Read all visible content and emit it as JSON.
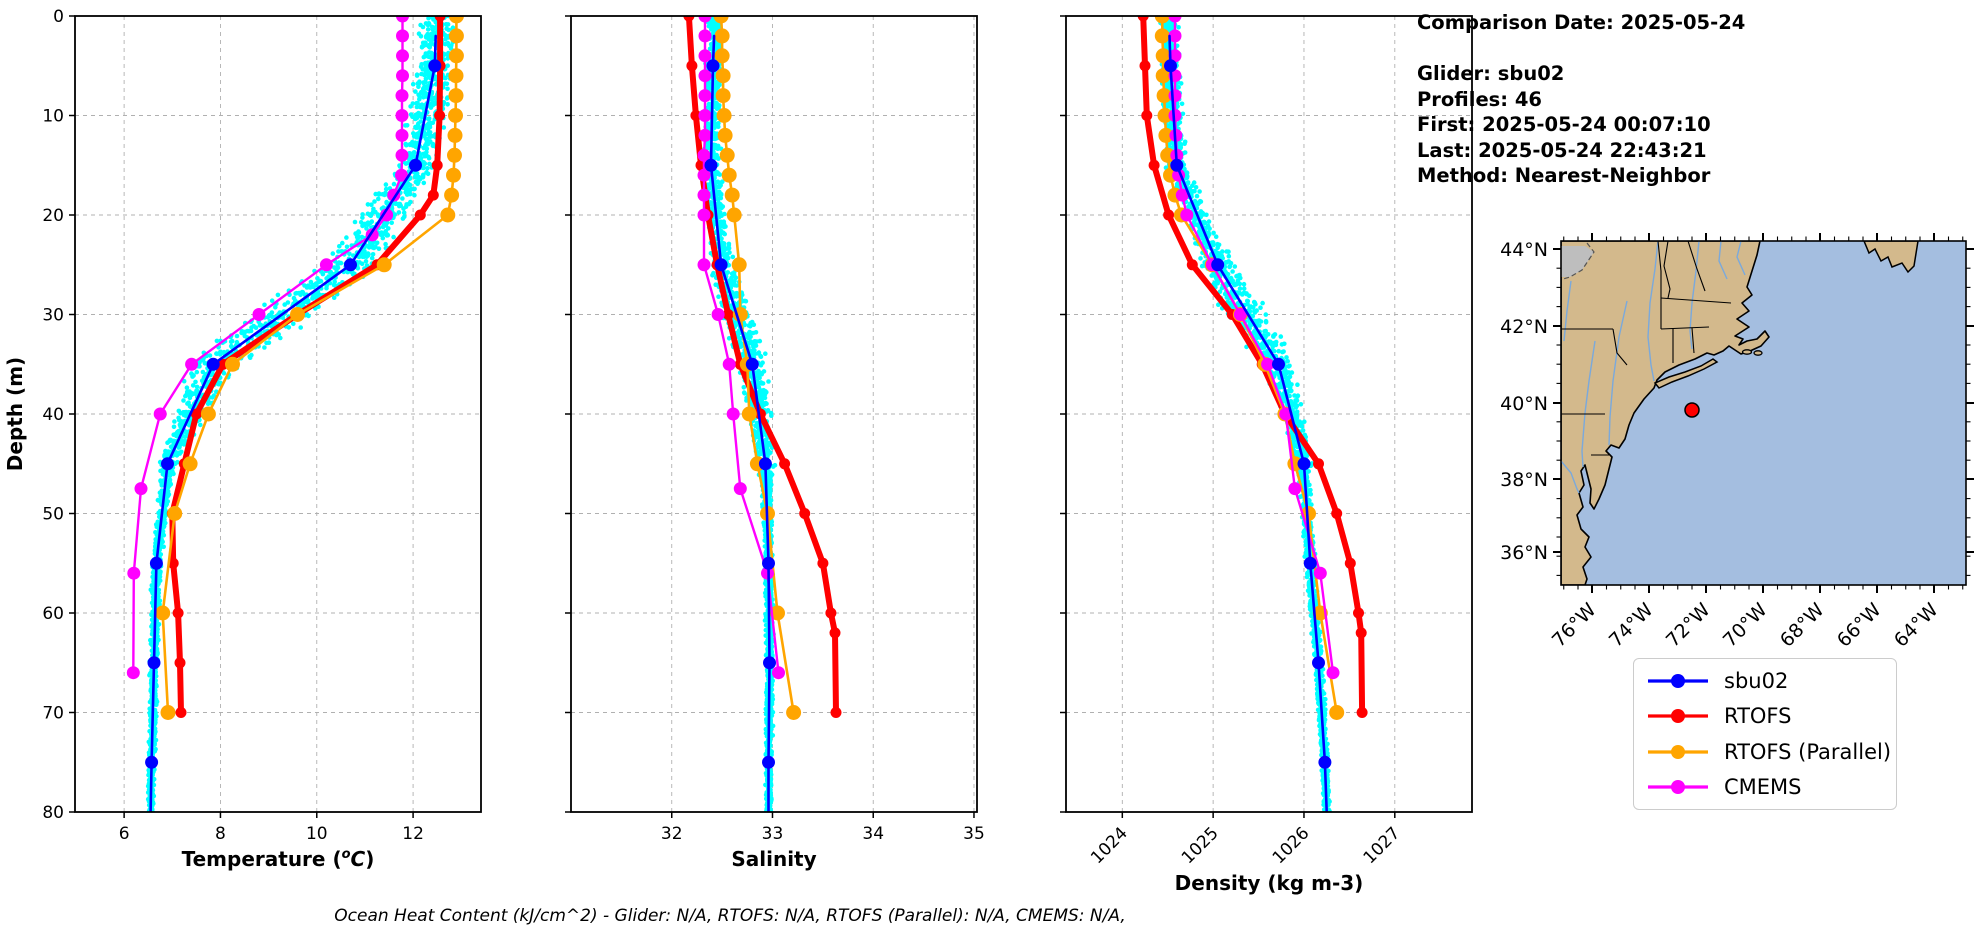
{
  "info_panel": {
    "lines": [
      "Comparison Date: 2025-05-24",
      "",
      "Glider: sbu02",
      "Profiles: 46",
      "First: 2025-05-24 00:07:10",
      "Last: 2025-05-24 22:43:21",
      "Method: Nearest-Neighbor"
    ]
  },
  "footer_note": "Ocean Heat Content (kJ/cm^2) - Glider: N/A,  RTOFS: N/A,  RTOFS (Parallel): N/A,  CMEMS: N/A,",
  "colors": {
    "glider_scatter": "#00ffff",
    "sbu02": "#0000ff",
    "rtofs": "#ff0000",
    "rtofs_parallel": "#ffa500",
    "cmems": "#ff00ff",
    "map_land": "#d3b98c",
    "map_ocean": "#a4bee0",
    "map_river": "#7aa9dc",
    "map_gray_region": "#bebebe",
    "map_marker": "#ff0000",
    "grid": "#b0b0b0"
  },
  "legend": {
    "items": [
      {
        "label": "sbu02",
        "color": "#0000ff"
      },
      {
        "label": "RTOFS",
        "color": "#ff0000"
      },
      {
        "label": "RTOFS (Parallel)",
        "color": "#ffa500"
      },
      {
        "label": "CMEMS",
        "color": "#ff00ff"
      }
    ]
  },
  "map": {
    "lat_labels": [
      "44°N",
      "42°N",
      "40°N",
      "38°N",
      "36°N"
    ],
    "lon_labels": [
      "76°W",
      "74°W",
      "72°W",
      "70°W",
      "68°W",
      "66°W",
      "64°W"
    ],
    "glider_location_note": "red dot"
  },
  "chart_data": [
    {
      "type": "line",
      "xlabel_parts": {
        "pre": "Temperature (",
        "sup": "o",
        "it": "C",
        "post": ")"
      },
      "ylabel": "Depth (m)",
      "xlim": [
        4.98,
        13.41
      ],
      "ylim": [
        80,
        0
      ],
      "xticks": [
        6,
        8,
        10,
        12
      ],
      "yticks": [
        0,
        10,
        20,
        30,
        40,
        50,
        60,
        70,
        80
      ],
      "ytick_labels_on": true,
      "xtick_rotation": 0,
      "grid": true,
      "scatter_spread": [
        [
          0,
          0.55
        ],
        [
          15,
          0.55
        ],
        [
          25,
          0.85
        ],
        [
          32,
          0.9
        ],
        [
          40,
          0.45
        ],
        [
          48,
          0.15
        ],
        [
          80,
          0.09
        ]
      ],
      "series": [
        {
          "name": "sbu02",
          "color": "#0000ff",
          "lw": 2.6,
          "marker_r": 6.5,
          "points": [
            [
              2,
              12.47
            ],
            [
              5,
              12.45
            ],
            [
              15,
              12.05
            ],
            [
              25,
              10.7
            ],
            [
              35,
              7.85
            ],
            [
              45,
              6.9
            ],
            [
              55,
              6.67
            ],
            [
              65,
              6.62
            ],
            [
              75,
              6.57
            ],
            [
              80,
              6.55
            ]
          ],
          "marker_depths": [
            5,
            15,
            25,
            35,
            45,
            55,
            65,
            75
          ]
        },
        {
          "name": "RTOFS",
          "color": "#ff0000",
          "lw": 6,
          "marker_r": 5.5,
          "points": [
            [
              0,
              12.56
            ],
            [
              5,
              12.56
            ],
            [
              10,
              12.55
            ],
            [
              15,
              12.5
            ],
            [
              18,
              12.42
            ],
            [
              20,
              12.15
            ],
            [
              25,
              11.25
            ],
            [
              30,
              9.6
            ],
            [
              35,
              8.05
            ],
            [
              40,
              7.5
            ],
            [
              45,
              7.25
            ],
            [
              50,
              7.0
            ],
            [
              55,
              7.02
            ],
            [
              60,
              7.12
            ],
            [
              65,
              7.16
            ],
            [
              70,
              7.18
            ]
          ]
        },
        {
          "name": "RTOFS (Parallel)",
          "color": "#ffa500",
          "lw": 2.6,
          "marker_r": 7.5,
          "points": [
            [
              0,
              12.9
            ],
            [
              2,
              12.9
            ],
            [
              4,
              12.9
            ],
            [
              6,
              12.89
            ],
            [
              8,
              12.89
            ],
            [
              10,
              12.88
            ],
            [
              12,
              12.87
            ],
            [
              14,
              12.86
            ],
            [
              16,
              12.84
            ],
            [
              18,
              12.8
            ],
            [
              20,
              12.72
            ],
            [
              25,
              11.4
            ],
            [
              30,
              9.6
            ],
            [
              35,
              8.25
            ],
            [
              40,
              7.75
            ],
            [
              45,
              7.37
            ],
            [
              50,
              7.05
            ],
            [
              60,
              6.8
            ],
            [
              70,
              6.91
            ]
          ]
        },
        {
          "name": "CMEMS",
          "color": "#ff00ff",
          "lw": 2.4,
          "marker_r": 6.5,
          "points": [
            [
              0,
              11.78
            ],
            [
              2,
              11.78
            ],
            [
              4,
              11.78
            ],
            [
              6,
              11.78
            ],
            [
              8,
              11.77
            ],
            [
              10,
              11.77
            ],
            [
              12,
              11.77
            ],
            [
              14,
              11.77
            ],
            [
              16,
              11.76
            ],
            [
              18,
              11.6
            ],
            [
              20,
              11.45
            ],
            [
              22,
              11.15
            ],
            [
              25,
              10.2
            ],
            [
              30,
              8.8
            ],
            [
              35,
              7.4
            ],
            [
              40,
              6.75
            ],
            [
              47.5,
              6.35
            ],
            [
              56,
              6.2
            ],
            [
              66,
              6.19
            ]
          ]
        }
      ]
    },
    {
      "type": "line",
      "xlabel": "Salinity",
      "ylabel": "",
      "xlim": [
        31.0,
        35.03
      ],
      "ylim": [
        80,
        0
      ],
      "xticks": [
        32,
        33,
        34,
        35
      ],
      "yticks": [
        0,
        10,
        20,
        30,
        40,
        50,
        60,
        70,
        80
      ],
      "ytick_labels_on": false,
      "xtick_rotation": 0,
      "grid": true,
      "scatter_spread": [
        [
          0,
          0.09
        ],
        [
          20,
          0.1
        ],
        [
          30,
          0.18
        ],
        [
          40,
          0.16
        ],
        [
          48,
          0.06
        ],
        [
          80,
          0.035
        ]
      ],
      "series": [
        {
          "name": "sbu02",
          "color": "#0000ff",
          "lw": 2.6,
          "marker_r": 6.5,
          "points": [
            [
              2,
              32.42
            ],
            [
              5,
              32.41
            ],
            [
              15,
              32.39
            ],
            [
              25,
              32.49
            ],
            [
              35,
              32.8
            ],
            [
              45,
              32.93
            ],
            [
              55,
              32.96
            ],
            [
              65,
              32.97
            ],
            [
              75,
              32.96
            ],
            [
              80,
              32.96
            ]
          ],
          "marker_depths": [
            5,
            15,
            25,
            35,
            45,
            55,
            65,
            75
          ]
        },
        {
          "name": "RTOFS",
          "color": "#ff0000",
          "lw": 6,
          "marker_r": 5.5,
          "points": [
            [
              0,
              32.17
            ],
            [
              5,
              32.2
            ],
            [
              10,
              32.24
            ],
            [
              15,
              32.29
            ],
            [
              20,
              32.36
            ],
            [
              25,
              32.45
            ],
            [
              30,
              32.56
            ],
            [
              35,
              32.68
            ],
            [
              40,
              32.88
            ],
            [
              45,
              33.12
            ],
            [
              50,
              33.32
            ],
            [
              55,
              33.5
            ],
            [
              60,
              33.58
            ],
            [
              62,
              33.62
            ],
            [
              70,
              33.63
            ]
          ]
        },
        {
          "name": "RTOFS (Parallel)",
          "color": "#ffa500",
          "lw": 2.6,
          "marker_r": 7.5,
          "points": [
            [
              0,
              32.49
            ],
            [
              2,
              32.5
            ],
            [
              4,
              32.5
            ],
            [
              6,
              32.51
            ],
            [
              8,
              32.51
            ],
            [
              10,
              32.52
            ],
            [
              12,
              32.53
            ],
            [
              14,
              32.55
            ],
            [
              16,
              32.57
            ],
            [
              18,
              32.6
            ],
            [
              20,
              32.62
            ],
            [
              25,
              32.67
            ],
            [
              30,
              32.68
            ],
            [
              35,
              32.75
            ],
            [
              40,
              32.77
            ],
            [
              45,
              32.85
            ],
            [
              50,
              32.95
            ],
            [
              60,
              33.05
            ],
            [
              70,
              33.21
            ]
          ]
        },
        {
          "name": "CMEMS",
          "color": "#ff00ff",
          "lw": 2.4,
          "marker_r": 6.5,
          "points": [
            [
              0,
              32.33
            ],
            [
              2,
              32.33
            ],
            [
              4,
              32.33
            ],
            [
              6,
              32.33
            ],
            [
              8,
              32.33
            ],
            [
              10,
              32.33
            ],
            [
              12,
              32.33
            ],
            [
              14,
              32.32
            ],
            [
              16,
              32.32
            ],
            [
              18,
              32.32
            ],
            [
              20,
              32.32
            ],
            [
              25,
              32.32
            ],
            [
              30,
              32.46
            ],
            [
              35,
              32.57
            ],
            [
              40,
              32.61
            ],
            [
              47.5,
              32.68
            ],
            [
              56,
              32.95
            ],
            [
              66,
              33.06
            ]
          ]
        }
      ]
    },
    {
      "type": "line",
      "xlabel": "Density (kg m-3)",
      "ylabel": "",
      "xlim": [
        1023.38,
        1027.85
      ],
      "ylim": [
        80,
        0
      ],
      "xticks": [
        1024,
        1025,
        1026,
        1027
      ],
      "yticks": [
        0,
        10,
        20,
        30,
        40,
        50,
        60,
        70,
        80
      ],
      "ytick_labels_on": false,
      "xtick_rotation": 45,
      "grid": true,
      "scatter_spread": [
        [
          0,
          0.12
        ],
        [
          20,
          0.15
        ],
        [
          28,
          0.3
        ],
        [
          38,
          0.18
        ],
        [
          48,
          0.07
        ],
        [
          80,
          0.045
        ]
      ],
      "series": [
        {
          "name": "sbu02",
          "color": "#0000ff",
          "lw": 2.6,
          "marker_r": 6.5,
          "points": [
            [
              2,
              1024.52
            ],
            [
              5,
              1024.53
            ],
            [
              15,
              1024.6
            ],
            [
              25,
              1025.05
            ],
            [
              35,
              1025.72
            ],
            [
              45,
              1026.0
            ],
            [
              55,
              1026.07
            ],
            [
              65,
              1026.16
            ],
            [
              75,
              1026.23
            ],
            [
              80,
              1026.25
            ]
          ],
          "marker_depths": [
            5,
            15,
            25,
            35,
            45,
            55,
            65,
            75
          ]
        },
        {
          "name": "RTOFS",
          "color": "#ff0000",
          "lw": 6,
          "marker_r": 5.5,
          "points": [
            [
              0,
              1024.23
            ],
            [
              5,
              1024.25
            ],
            [
              10,
              1024.27
            ],
            [
              15,
              1024.35
            ],
            [
              20,
              1024.51
            ],
            [
              25,
              1024.77
            ],
            [
              30,
              1025.21
            ],
            [
              35,
              1025.54
            ],
            [
              40,
              1025.79
            ],
            [
              45,
              1026.16
            ],
            [
              50,
              1026.36
            ],
            [
              55,
              1026.51
            ],
            [
              60,
              1026.6
            ],
            [
              62,
              1026.63
            ],
            [
              70,
              1026.64
            ]
          ]
        },
        {
          "name": "RTOFS (Parallel)",
          "color": "#ffa500",
          "lw": 2.6,
          "marker_r": 7.5,
          "points": [
            [
              0,
              1024.44
            ],
            [
              2,
              1024.44
            ],
            [
              4,
              1024.45
            ],
            [
              6,
              1024.45
            ],
            [
              8,
              1024.46
            ],
            [
              10,
              1024.47
            ],
            [
              12,
              1024.48
            ],
            [
              14,
              1024.5
            ],
            [
              16,
              1024.53
            ],
            [
              18,
              1024.58
            ],
            [
              20,
              1024.65
            ],
            [
              25,
              1024.99
            ],
            [
              30,
              1025.3
            ],
            [
              35,
              1025.57
            ],
            [
              40,
              1025.79
            ],
            [
              45,
              1025.9
            ],
            [
              50,
              1026.05
            ],
            [
              60,
              1026.18
            ],
            [
              70,
              1026.36
            ]
          ]
        },
        {
          "name": "CMEMS",
          "color": "#ff00ff",
          "lw": 2.4,
          "marker_r": 6.5,
          "points": [
            [
              0,
              1024.58
            ],
            [
              2,
              1024.58
            ],
            [
              4,
              1024.58
            ],
            [
              6,
              1024.58
            ],
            [
              8,
              1024.58
            ],
            [
              10,
              1024.58
            ],
            [
              12,
              1024.59
            ],
            [
              14,
              1024.6
            ],
            [
              16,
              1024.62
            ],
            [
              18,
              1024.66
            ],
            [
              20,
              1024.71
            ],
            [
              25,
              1024.99
            ],
            [
              30,
              1025.3
            ],
            [
              35,
              1025.6
            ],
            [
              40,
              1025.8
            ],
            [
              47.5,
              1025.9
            ],
            [
              56,
              1026.18
            ],
            [
              66,
              1026.32
            ]
          ]
        }
      ]
    }
  ]
}
